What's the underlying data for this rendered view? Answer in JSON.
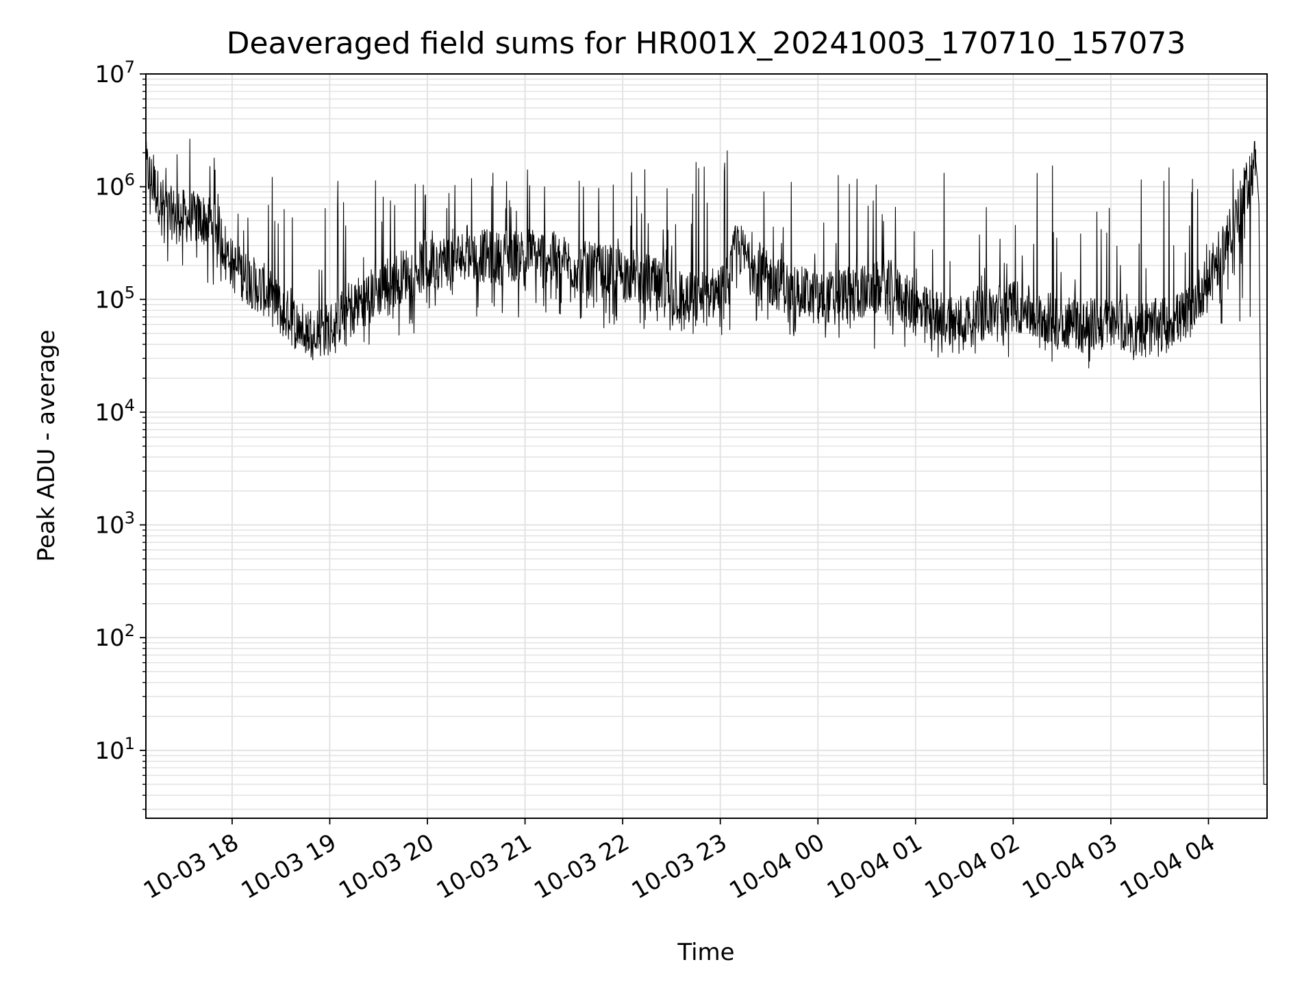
{
  "chart_data": {
    "type": "line",
    "title": "Deaveraged field sums for HR001X_20241003_170710_157073",
    "xlabel": "Time",
    "ylabel": "Peak ADU - average",
    "yscale": "log",
    "ylim": [
      2.5,
      10000000
    ],
    "xlim": [
      "2024-10-03 17:07",
      "2024-10-04 04:36"
    ],
    "grid": true,
    "line_color": "#000000",
    "grid_color": "#e3e3e3",
    "x_ticks": [
      {
        "value": "2024-10-03 18:00",
        "label": "10-03 18"
      },
      {
        "value": "2024-10-03 19:00",
        "label": "10-03 19"
      },
      {
        "value": "2024-10-03 20:00",
        "label": "10-03 20"
      },
      {
        "value": "2024-10-03 21:00",
        "label": "10-03 21"
      },
      {
        "value": "2024-10-03 22:00",
        "label": "10-03 22"
      },
      {
        "value": "2024-10-03 23:00",
        "label": "10-03 23"
      },
      {
        "value": "2024-10-04 00:00",
        "label": "10-04 00"
      },
      {
        "value": "2024-10-04 01:00",
        "label": "10-04 01"
      },
      {
        "value": "2024-10-04 02:00",
        "label": "10-04 02"
      },
      {
        "value": "2024-10-04 03:00",
        "label": "10-04 03"
      },
      {
        "value": "2024-10-04 04:00",
        "label": "10-04 04"
      }
    ],
    "y_ticks": [
      {
        "value": 10,
        "base": "10",
        "exp": "1"
      },
      {
        "value": 100,
        "base": "10",
        "exp": "2"
      },
      {
        "value": 1000,
        "base": "10",
        "exp": "3"
      },
      {
        "value": 10000,
        "base": "10",
        "exp": "4"
      },
      {
        "value": 100000,
        "base": "10",
        "exp": "5"
      },
      {
        "value": 1000000,
        "base": "10",
        "exp": "6"
      },
      {
        "value": 10000000,
        "base": "10",
        "exp": "7"
      }
    ],
    "series": [
      {
        "x": [
          "2024-10-03 17:07",
          "2024-10-03 17:10",
          "2024-10-03 17:15",
          "2024-10-03 17:20",
          "2024-10-03 17:30",
          "2024-10-03 17:40",
          "2024-10-03 17:50",
          "2024-10-03 17:55",
          "2024-10-03 18:00",
          "2024-10-03 18:10",
          "2024-10-03 18:20",
          "2024-10-03 18:30",
          "2024-10-03 18:40",
          "2024-10-03 18:50",
          "2024-10-03 19:00",
          "2024-10-03 19:10",
          "2024-10-03 19:20",
          "2024-10-03 19:30",
          "2024-10-03 19:40",
          "2024-10-03 19:50",
          "2024-10-03 20:00",
          "2024-10-03 20:15",
          "2024-10-03 20:30",
          "2024-10-03 20:45",
          "2024-10-03 21:00",
          "2024-10-03 21:15",
          "2024-10-03 21:30",
          "2024-10-03 21:45",
          "2024-10-03 22:00",
          "2024-10-03 22:15",
          "2024-10-03 22:30",
          "2024-10-03 22:45",
          "2024-10-03 23:00",
          "2024-10-03 23:05",
          "2024-10-03 23:10",
          "2024-10-03 23:20",
          "2024-10-03 23:30",
          "2024-10-03 23:45",
          "2024-10-04 00:00",
          "2024-10-04 00:15",
          "2024-10-04 00:30",
          "2024-10-04 00:45",
          "2024-10-04 01:00",
          "2024-10-04 01:15",
          "2024-10-04 01:30",
          "2024-10-04 01:45",
          "2024-10-04 02:00",
          "2024-10-04 02:15",
          "2024-10-04 02:30",
          "2024-10-04 02:45",
          "2024-10-04 03:00",
          "2024-10-04 03:15",
          "2024-10-04 03:30",
          "2024-10-04 03:45",
          "2024-10-04 04:00",
          "2024-10-04 04:10",
          "2024-10-04 04:20",
          "2024-10-04 04:26",
          "2024-10-04 04:29",
          "2024-10-04 04:30",
          "2024-10-04 04:31",
          "2024-10-04 04:34",
          "2024-10-04 04:36"
        ],
        "y": [
          1500000,
          1200000,
          800000,
          600000,
          550000,
          520000,
          480000,
          300000,
          200000,
          150000,
          120000,
          80000,
          60000,
          50000,
          55000,
          80000,
          100000,
          120000,
          150000,
          180000,
          200000,
          230000,
          250000,
          230000,
          260000,
          240000,
          200000,
          180000,
          170000,
          150000,
          110000,
          100000,
          120000,
          150000,
          300000,
          200000,
          150000,
          120000,
          100000,
          110000,
          120000,
          130000,
          80000,
          70000,
          65000,
          75000,
          90000,
          70000,
          65000,
          60000,
          60000,
          55000,
          60000,
          70000,
          150000,
          300000,
          700000,
          1300000,
          1700000,
          1200000,
          700000,
          5,
          5
        ],
        "spike_envelope": [
          [
            "2024-10-03 17:07",
            4000000
          ],
          [
            "2024-10-03 17:50",
            2500000
          ],
          [
            "2024-10-03 18:30",
            1200000
          ],
          [
            "2024-10-03 19:30",
            1300000
          ],
          [
            "2024-10-03 20:30",
            1500000
          ],
          [
            "2024-10-03 21:30",
            1600000
          ],
          [
            "2024-10-03 22:30",
            1400000
          ],
          [
            "2024-10-03 23:05",
            2500000
          ],
          [
            "2024-10-03 23:30",
            1600000
          ],
          [
            "2024-10-04 00:30",
            1700000
          ],
          [
            "2024-10-04 01:30",
            1600000
          ],
          [
            "2024-10-04 02:30",
            1600000
          ],
          [
            "2024-10-04 03:30",
            1600000
          ],
          [
            "2024-10-04 04:10",
            2500000
          ]
        ],
        "low_envelope": [
          [
            "2024-10-03 17:07",
            250000
          ],
          [
            "2024-10-03 17:55",
            120000
          ],
          [
            "2024-10-03 18:30",
            45000
          ],
          [
            "2024-10-03 19:00",
            30000
          ],
          [
            "2024-10-03 20:00",
            50000
          ],
          [
            "2024-10-03 21:00",
            70000
          ],
          [
            "2024-10-03 22:00",
            50000
          ],
          [
            "2024-10-03 23:00",
            45000
          ],
          [
            "2024-10-04 00:00",
            45000
          ],
          [
            "2024-10-04 01:00",
            30000
          ],
          [
            "2024-10-04 02:00",
            30000
          ],
          [
            "2024-10-04 02:50",
            22000
          ],
          [
            "2024-10-04 03:30",
            30000
          ],
          [
            "2024-10-04 04:00",
            60000
          ]
        ]
      }
    ]
  }
}
